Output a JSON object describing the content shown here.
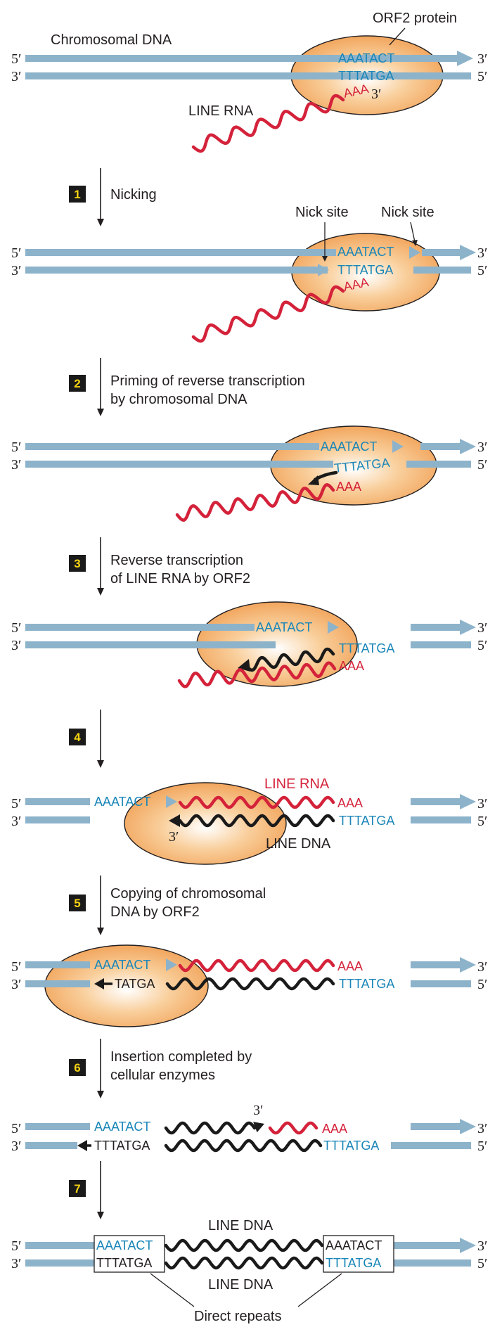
{
  "labels": {
    "orf2_protein": "ORF2 protein",
    "chromosomal_dna": "Chromosomal DNA",
    "line_rna": "LINE RNA",
    "line_dna": "LINE DNA",
    "nick_site": "Nick site",
    "direct_repeats": "Direct repeats"
  },
  "ends": {
    "five": "5′",
    "three": "3′"
  },
  "seqs": {
    "top": "AAATACT",
    "bottom": "TTTATGA",
    "poly_a": "AAA",
    "partial": "TATGA"
  },
  "steps": [
    {
      "num": "1",
      "line1": "Nicking",
      "line2": ""
    },
    {
      "num": "2",
      "line1": "Priming of reverse transcription",
      "line2": "by  chromosomal DNA"
    },
    {
      "num": "3",
      "line1": "Reverse transcription",
      "line2": "of LINE RNA by ORF2"
    },
    {
      "num": "4",
      "line1": "",
      "line2": ""
    },
    {
      "num": "5",
      "line1": "Copying of chromosomal",
      "line2": "DNA by ORF2"
    },
    {
      "num": "6",
      "line1": "Insertion completed by",
      "line2": "cellular enzymes"
    },
    {
      "num": "7",
      "line1": "",
      "line2": ""
    }
  ],
  "colors": {
    "dna_strand": "#8db3cb",
    "sequence_text": "#1a86b8",
    "rna": "#d4223a",
    "line_dna": "#1a1a1a",
    "protein_fill": "#f3a35a",
    "protein_edge": "#231f20",
    "step_box": "#1a1a1a",
    "step_number": "#f5d313"
  }
}
